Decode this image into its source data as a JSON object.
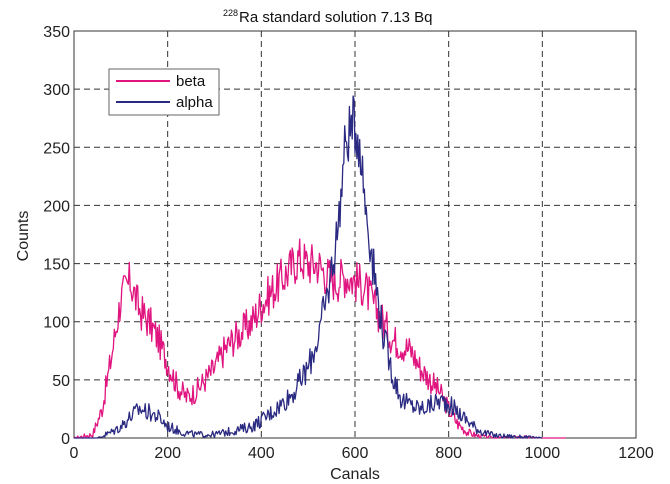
{
  "chart_data": {
    "type": "line",
    "title": "Ra standard solution 7.13 Bq",
    "title_superscript": "228",
    "xlabel": "Canals",
    "ylabel": "Counts",
    "xlim": [
      0,
      1200
    ],
    "ylim": [
      0,
      350
    ],
    "x_ticks": [
      "0",
      "200",
      "400",
      "600",
      "800",
      "1000",
      "1200"
    ],
    "y_ticks": [
      "0",
      "50",
      "100",
      "150",
      "200",
      "250",
      "300",
      "350"
    ],
    "grid": true,
    "legend_position": "top-left",
    "series": [
      {
        "name": "beta",
        "color": "#e0157f",
        "x": [
          0,
          40,
          60,
          80,
          100,
          120,
          140,
          160,
          180,
          200,
          220,
          240,
          260,
          280,
          300,
          320,
          340,
          360,
          380,
          400,
          420,
          440,
          460,
          480,
          500,
          520,
          540,
          560,
          580,
          600,
          620,
          640,
          660,
          680,
          700,
          720,
          740,
          760,
          780,
          800,
          820,
          840,
          860,
          880,
          900,
          950,
          1000,
          1050
        ],
        "y": [
          0,
          3,
          25,
          70,
          120,
          135,
          110,
          100,
          85,
          65,
          45,
          35,
          40,
          50,
          60,
          75,
          85,
          92,
          100,
          115,
          125,
          135,
          145,
          155,
          150,
          150,
          140,
          135,
          140,
          135,
          130,
          115,
          100,
          85,
          80,
          75,
          60,
          50,
          40,
          25,
          12,
          5,
          2,
          1,
          0,
          1,
          0,
          0
        ]
      },
      {
        "name": "alpha",
        "color": "#2b2a82",
        "x": [
          0,
          50,
          80,
          100,
          120,
          140,
          160,
          180,
          200,
          230,
          260,
          300,
          350,
          380,
          400,
          440,
          470,
          500,
          520,
          540,
          560,
          570,
          580,
          590,
          600,
          610,
          620,
          640,
          660,
          680,
          700,
          720,
          740,
          760,
          780,
          800,
          820,
          840,
          860,
          880,
          900,
          950,
          1000
        ],
        "y": [
          0,
          0,
          5,
          10,
          18,
          25,
          22,
          18,
          10,
          5,
          3,
          3,
          7,
          10,
          15,
          28,
          40,
          60,
          85,
          120,
          170,
          210,
          255,
          265,
          270,
          255,
          210,
          145,
          90,
          55,
          32,
          28,
          25,
          28,
          32,
          30,
          22,
          15,
          8,
          4,
          2,
          1,
          0
        ]
      }
    ]
  }
}
